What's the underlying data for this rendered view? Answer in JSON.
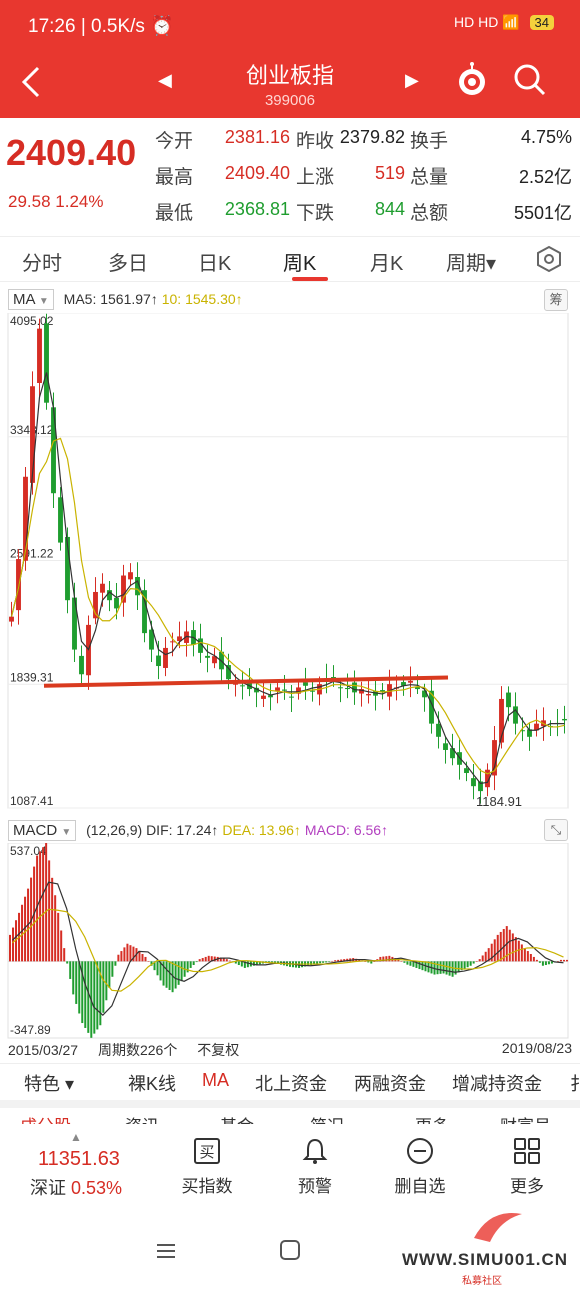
{
  "status_bar": {
    "time": "17:26",
    "speed": "0.5K/s",
    "network": "HD  HD",
    "battery": "34"
  },
  "header": {
    "title": "创业板指",
    "code": "399006"
  },
  "quote": {
    "price": "2409.40",
    "change": "29.58",
    "change_pct": "1.24%",
    "rows": [
      [
        {
          "label": "今开",
          "value": "2381.16",
          "color": "red"
        },
        {
          "label": "昨收",
          "value": "2379.82",
          "color": "dark"
        },
        {
          "label": "换手",
          "value": "4.75%",
          "color": "dark"
        }
      ],
      [
        {
          "label": "最高",
          "value": "2409.40",
          "color": "red"
        },
        {
          "label": "上涨",
          "value": "519",
          "color": "red"
        },
        {
          "label": "总量",
          "value": "2.52亿",
          "color": "dark"
        }
      ],
      [
        {
          "label": "最低",
          "value": "2368.81",
          "color": "green"
        },
        {
          "label": "下跌",
          "value": "844",
          "color": "green"
        },
        {
          "label": "总额",
          "value": "5501亿",
          "color": "dark"
        }
      ]
    ]
  },
  "period_tabs": [
    {
      "label": "分时"
    },
    {
      "label": "多日"
    },
    {
      "label": "日K"
    },
    {
      "label": "周K",
      "active": true
    },
    {
      "label": "月K"
    },
    {
      "label": "周期▾"
    }
  ],
  "indicators": {
    "ma_type": "MA",
    "ma5": "MA5: 1561.97↑",
    "ma10": "10: 1545.30↑",
    "chip_label": "筹",
    "macd_type": "MACD",
    "macd_params": "(12,26,9) DIF: 17.24↑",
    "dea": "DEA: 13.96↑",
    "macd": "MACD: 6.56↑"
  },
  "chart_data": {
    "type": "candlestick",
    "price_axis": {
      "ticks": [
        "4095.02",
        "3343.12",
        "2591.22",
        "1839.31",
        "1087.41"
      ],
      "min": 1087.41,
      "max": 4095.02
    },
    "annotations": {
      "low_label": "1184.91",
      "high": 4037.96,
      "low": 1184.91
    },
    "support_line": {
      "from_value": 1830,
      "to_value": 1880
    },
    "weeks": 226,
    "weekly_close": [
      2250,
      2600,
      3100,
      3650,
      4000,
      3550,
      3000,
      2700,
      2350,
      2050,
      1900,
      2200,
      2400,
      2450,
      2350,
      2300,
      2500,
      2520,
      2380,
      2150,
      2050,
      1950,
      2060,
      2100,
      2130,
      2160,
      2080,
      2030,
      2000,
      2010,
      1930,
      1870,
      1850,
      1830,
      1810,
      1790,
      1770,
      1760,
      1820,
      1800,
      1760,
      1820,
      1830,
      1800,
      1840,
      1870,
      1860,
      1820,
      1810,
      1790,
      1810,
      1780,
      1770,
      1790,
      1840,
      1820,
      1830,
      1860,
      1810,
      1760,
      1600,
      1520,
      1440,
      1390,
      1350,
      1300,
      1220,
      1190,
      1320,
      1500,
      1750,
      1700,
      1600,
      1560,
      1520,
      1600,
      1620,
      1580,
      1600,
      1620
    ],
    "price_time_range": {
      "start": "2015/03/27",
      "end": "2019/08/23"
    },
    "period_count_label": "周期数226个",
    "adjust_label": "不复权",
    "macd_axis": {
      "top": "537.04",
      "bottom": "-347.89",
      "min": -347.89,
      "max": 537.04
    },
    "macd_hist": [
      120,
      220,
      330,
      480,
      537,
      300,
      60,
      -150,
      -280,
      -347,
      -290,
      -120,
      30,
      80,
      60,
      20,
      -40,
      -110,
      -140,
      -90,
      -30,
      10,
      25,
      20,
      10,
      -10,
      -30,
      -20,
      -10,
      -5,
      -15,
      -25,
      -30,
      -20,
      -10,
      -5,
      5,
      10,
      15,
      5,
      -10,
      20,
      25,
      10,
      -15,
      -30,
      -45,
      -60,
      -55,
      -70,
      -40,
      -20,
      10,
      60,
      120,
      160,
      110,
      60,
      20,
      -20,
      -10,
      6.56
    ]
  },
  "bottom_tabs": [
    {
      "label": "特色 ▾"
    },
    {
      "label": "裸K线"
    },
    {
      "label": "MA",
      "active": true
    },
    {
      "label": "北上资金"
    },
    {
      "label": "两融资金"
    },
    {
      "label": "增减持资金"
    },
    {
      "label": "扌"
    }
  ],
  "bottom_bar": {
    "market_value": "11351.63",
    "market_name": "深证",
    "market_pct": "0.53%",
    "actions": [
      {
        "label": "买指数",
        "icon": "buy-icon"
      },
      {
        "label": "预警",
        "icon": "bell-icon"
      },
      {
        "label": "删自选",
        "icon": "minus-circle-icon"
      },
      {
        "label": "更多",
        "icon": "grid-icon"
      }
    ]
  },
  "watermark": {
    "text": "WWW.SIMU001.CN",
    "sub": "私募社区"
  },
  "colors": {
    "brand_red": "#e8372f",
    "up": "#d62d24",
    "down": "#1f9d2f",
    "ma5": "#333333",
    "ma10": "#c9b300",
    "macd": "#b23fbf"
  }
}
